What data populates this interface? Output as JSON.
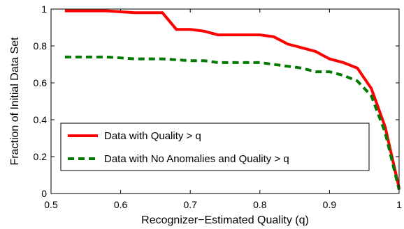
{
  "chart_data": {
    "type": "line",
    "title": "",
    "xlabel": "Recognizer−Estimated Quality (q)",
    "ylabel": "Fraction of Initial Data Set",
    "xlim": [
      0.5,
      1.0
    ],
    "ylim": [
      0,
      1
    ],
    "xticks": [
      0.5,
      0.6,
      0.7,
      0.8,
      0.9,
      1.0
    ],
    "xtick_labels": [
      "0.5",
      "0.6",
      "0.7",
      "0.8",
      "0.9",
      "1"
    ],
    "yticks": [
      0,
      0.2,
      0.4,
      0.6,
      0.8,
      1.0
    ],
    "ytick_labels": [
      "0",
      "0.2",
      "0.4",
      "0.6",
      "0.8",
      "1"
    ],
    "grid": false,
    "legend_position": "lower-left",
    "series": [
      {
        "name": "Data with Quality > q",
        "color": "#ff0000",
        "style": "solid",
        "x": [
          0.52,
          0.58,
          0.62,
          0.66,
          0.68,
          0.7,
          0.72,
          0.74,
          0.76,
          0.8,
          0.82,
          0.84,
          0.86,
          0.88,
          0.9,
          0.92,
          0.94,
          0.96,
          0.98,
          1.0
        ],
        "y": [
          0.99,
          0.99,
          0.98,
          0.98,
          0.89,
          0.89,
          0.88,
          0.86,
          0.86,
          0.86,
          0.85,
          0.81,
          0.79,
          0.77,
          0.73,
          0.71,
          0.68,
          0.57,
          0.36,
          0.03
        ]
      },
      {
        "name": "Data with No Anomalies and Quality > q",
        "color": "#007a00",
        "style": "dashed",
        "x": [
          0.52,
          0.58,
          0.62,
          0.66,
          0.7,
          0.72,
          0.74,
          0.76,
          0.8,
          0.82,
          0.84,
          0.86,
          0.88,
          0.9,
          0.92,
          0.94,
          0.96,
          0.98,
          1.0
        ],
        "y": [
          0.74,
          0.74,
          0.73,
          0.73,
          0.72,
          0.72,
          0.71,
          0.71,
          0.71,
          0.7,
          0.69,
          0.68,
          0.66,
          0.66,
          0.64,
          0.61,
          0.53,
          0.33,
          0.02
        ]
      }
    ]
  }
}
